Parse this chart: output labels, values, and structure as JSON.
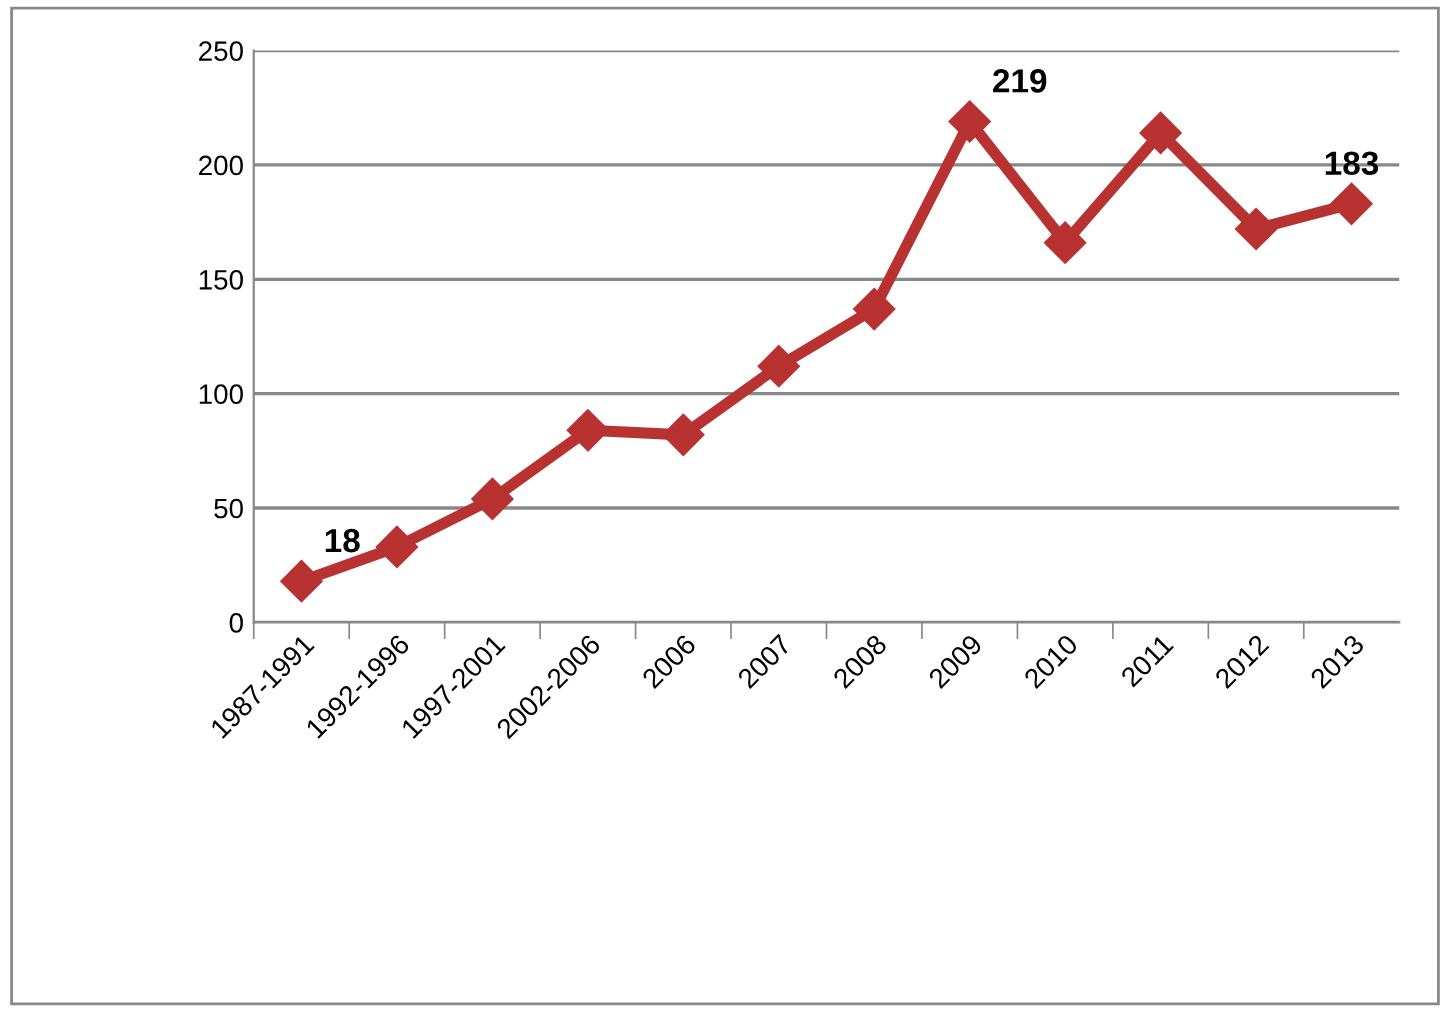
{
  "chart_data": {
    "type": "line",
    "categories": [
      "1987-1991",
      "1992-1996",
      "1997-2001",
      "2002-2006",
      "2006",
      "2007",
      "2008",
      "2009",
      "2010",
      "2011",
      "2012",
      "2013"
    ],
    "series": [
      {
        "color": "#b83232",
        "values": [
          18,
          33,
          54,
          84,
          82,
          112,
          137,
          219,
          166,
          214,
          172,
          183
        ]
      }
    ],
    "ylim": [
      0,
      250
    ],
    "yticks": [
      0,
      50,
      100,
      150,
      200,
      250
    ],
    "grid": "y",
    "marker": "diamond",
    "line_style": "solid",
    "annotations": [
      {
        "text": "18",
        "x": "1987-1991",
        "y": 18
      },
      {
        "text": "219",
        "x": "2009",
        "y": 219
      },
      {
        "text": "183",
        "x": "2013",
        "y": 183
      }
    ]
  }
}
